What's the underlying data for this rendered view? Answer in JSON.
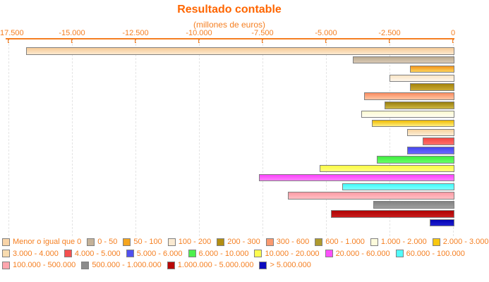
{
  "style": {
    "background": "#FFFFFF",
    "title_color": "#FF6600",
    "text_color": "#F57F21",
    "axis_color": "#F57F21",
    "grid_color": "#E4E4E4",
    "bar_border_color": "#808080"
  },
  "chart_data": {
    "type": "bar",
    "orientation": "horizontal",
    "title": "Resultado contable",
    "subtitle": "(millones de euros)",
    "xlabel": "",
    "ylabel": "",
    "xlim": [
      -17500,
      0
    ],
    "grid": "vertical-dashed",
    "legend_position": "bottom",
    "x_ticks": [
      {
        "value": -17500,
        "label": "-17.500"
      },
      {
        "value": -15000,
        "label": "-15.000"
      },
      {
        "value": -12500,
        "label": "-12.500"
      },
      {
        "value": -10000,
        "label": "-10.000"
      },
      {
        "value": -7500,
        "label": "-7.500"
      },
      {
        "value": -5000,
        "label": "-5.000"
      },
      {
        "value": -2500,
        "label": "-2.500"
      },
      {
        "value": 0,
        "label": "0"
      }
    ],
    "legend_rows": [
      9,
      7,
      4
    ],
    "series": [
      {
        "category": "Menor o igual que 0",
        "value": -16800,
        "color": "#F8D4A8",
        "color_top": "#F6CB97",
        "color_bottom": "#FDE9CF"
      },
      {
        "category": "0 - 50",
        "value": -3950,
        "color": "#C4B299",
        "color_top": "#BCAA8E",
        "color_bottom": "#D9CAB6"
      },
      {
        "category": "50 - 100",
        "value": -1700,
        "color": "#F5A51D",
        "color_top": "#F0931C",
        "color_bottom": "#FFD45C"
      },
      {
        "category": "100 - 200",
        "value": -2500,
        "color": "#FAEAD2",
        "color_top": "#F9E4C4",
        "color_bottom": "#FEF7EC"
      },
      {
        "category": "200 - 300",
        "value": -1700,
        "color": "#B28E12",
        "color_top": "#A4830C",
        "color_bottom": "#CAAA33"
      },
      {
        "category": "300 - 600",
        "value": -3500,
        "color": "#FA9A70",
        "color_top": "#F98B5F",
        "color_bottom": "#FFC7A6"
      },
      {
        "category": "600 - 1.000",
        "value": -2700,
        "color": "#AE9A2E",
        "color_top": "#977D0D",
        "color_bottom": "#CFB842"
      },
      {
        "category": "1.000 - 2.000",
        "value": -3600,
        "color": "#FDFBDC",
        "color_top": "#FCF9D0",
        "color_bottom": "#FFFEF2"
      },
      {
        "category": "2.000 - 3.000",
        "value": -3200,
        "color": "#F8C810",
        "color_top": "#F0BB02",
        "color_bottom": "#FFEF82"
      },
      {
        "category": "3.000 - 4.000",
        "value": -1800,
        "color": "#F8DCB0",
        "color_top": "#F6D3A0",
        "color_bottom": "#FCEDD6"
      },
      {
        "category": "4.000 - 5.000",
        "value": -1200,
        "color": "#F55050",
        "color_top": "#F24743",
        "color_bottom": "#FF6F6A"
      },
      {
        "category": "5.000 - 6.000",
        "value": -1800,
        "color": "#5050F0",
        "color_top": "#4747EC",
        "color_bottom": "#6868FF"
      },
      {
        "category": "6.000 - 10.000",
        "value": -3000,
        "color": "#4DF04D",
        "color_top": "#3FEC3F",
        "color_bottom": "#68FF68"
      },
      {
        "category": "10.000 - 20.000",
        "value": -5250,
        "color": "#FCFC50",
        "color_top": "#FAFA42",
        "color_bottom": "#FFFF80"
      },
      {
        "category": "20.000 - 60.000",
        "value": -7650,
        "color": "#FC50FC",
        "color_top": "#FA42FA",
        "color_bottom": "#FF80FF"
      },
      {
        "category": "60.000 - 100.000",
        "value": -4350,
        "color": "#50FCFC",
        "color_top": "#42FAFA",
        "color_bottom": "#80FFFF"
      },
      {
        "category": "100.000 - 500.000",
        "value": -6500,
        "color": "#FFA6AE",
        "color_top": "#FE9AA3",
        "color_bottom": "#FFC0C6"
      },
      {
        "category": "500.000 - 1.000.000",
        "value": -3150,
        "color": "#8C8C8C",
        "color_top": "#828282",
        "color_bottom": "#9E9E9E"
      },
      {
        "category": "1.000.000 - 5.000.000",
        "value": -4800,
        "color": "#B80808",
        "color_top": "#AF0303",
        "color_bottom": "#C81E1E"
      },
      {
        "category": "> 5.000.000",
        "value": -930,
        "color": "#0A0ABE",
        "color_top": "#0303B2",
        "color_bottom": "#2020D0"
      }
    ]
  }
}
